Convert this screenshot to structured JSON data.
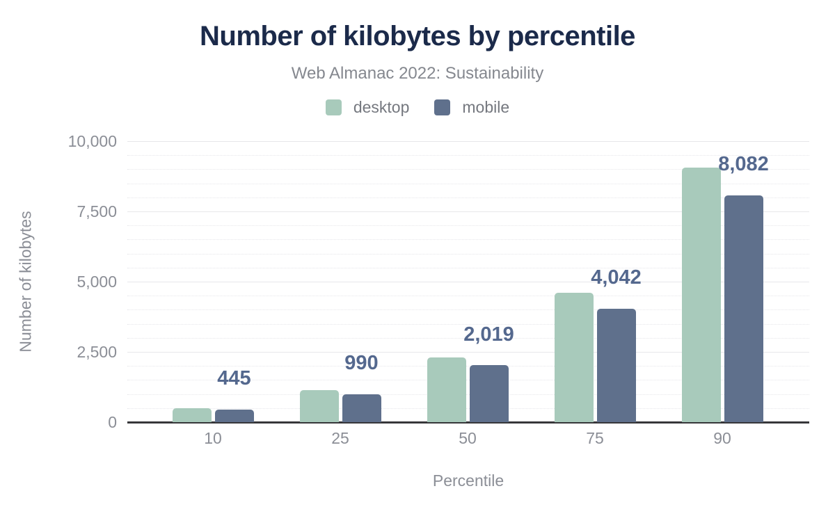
{
  "chart_data": {
    "type": "bar",
    "title": "Number of kilobytes by percentile",
    "subtitle": "Web Almanac 2022: Sustainability",
    "xlabel": "Percentile",
    "ylabel": "Number of kilobytes",
    "categories": [
      "10",
      "25",
      "50",
      "75",
      "90"
    ],
    "series": [
      {
        "name": "desktop",
        "color": "#a8cabb",
        "values": [
          500,
          1150,
          2300,
          4600,
          9050
        ]
      },
      {
        "name": "mobile",
        "color": "#5f708c",
        "values": [
          445,
          990,
          2019,
          4042,
          8082
        ],
        "labels": [
          "445",
          "990",
          "2,019",
          "4,042",
          "8,082"
        ]
      }
    ],
    "ylim": [
      0,
      10000
    ],
    "yticks": [
      0,
      2500,
      5000,
      7500,
      10000
    ],
    "ytick_labels": [
      "0",
      "2,500",
      "5,000",
      "7,500",
      "10,000"
    ],
    "minor_grid_step": 500,
    "grid": true,
    "legend_position": "top"
  },
  "colors": {
    "background": "#ffffff",
    "title_text": "#1b2a4a",
    "subtitle_text": "#85888f",
    "legend_text": "#75787f",
    "axis_text": "#8b8e96",
    "data_label_text": "#54688e",
    "axis_line": "#37373a",
    "grid_major": "#e7e7ea",
    "grid_minor": "#e6e6ea",
    "desktop_bar": "#a8cabb",
    "mobile_bar": "#5f708c"
  }
}
